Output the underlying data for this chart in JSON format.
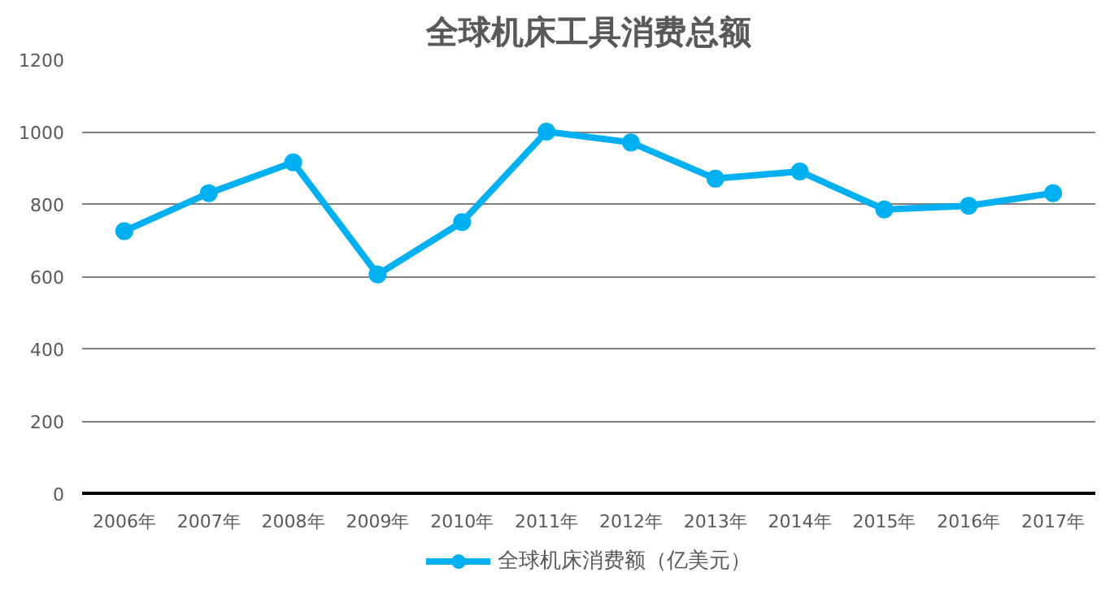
{
  "chart_data": {
    "type": "line",
    "title": "全球机床工具消费总额",
    "categories": [
      "2006年",
      "2007年",
      "2008年",
      "2009年",
      "2010年",
      "2011年",
      "2012年",
      "2013年",
      "2014年",
      "2015年",
      "2016年",
      "2017年"
    ],
    "series": [
      {
        "name": "全球机床消费额（亿美元）",
        "color": "#00b0f0",
        "values": [
          725,
          830,
          915,
          605,
          750,
          1000,
          970,
          870,
          890,
          785,
          795,
          830
        ]
      }
    ],
    "ylim": [
      0,
      1200
    ],
    "yticks": [
      0,
      200,
      400,
      600,
      800,
      1000,
      1200
    ],
    "grid": "y",
    "legend": "bottom",
    "marker": "circle",
    "line_style": "solid"
  }
}
